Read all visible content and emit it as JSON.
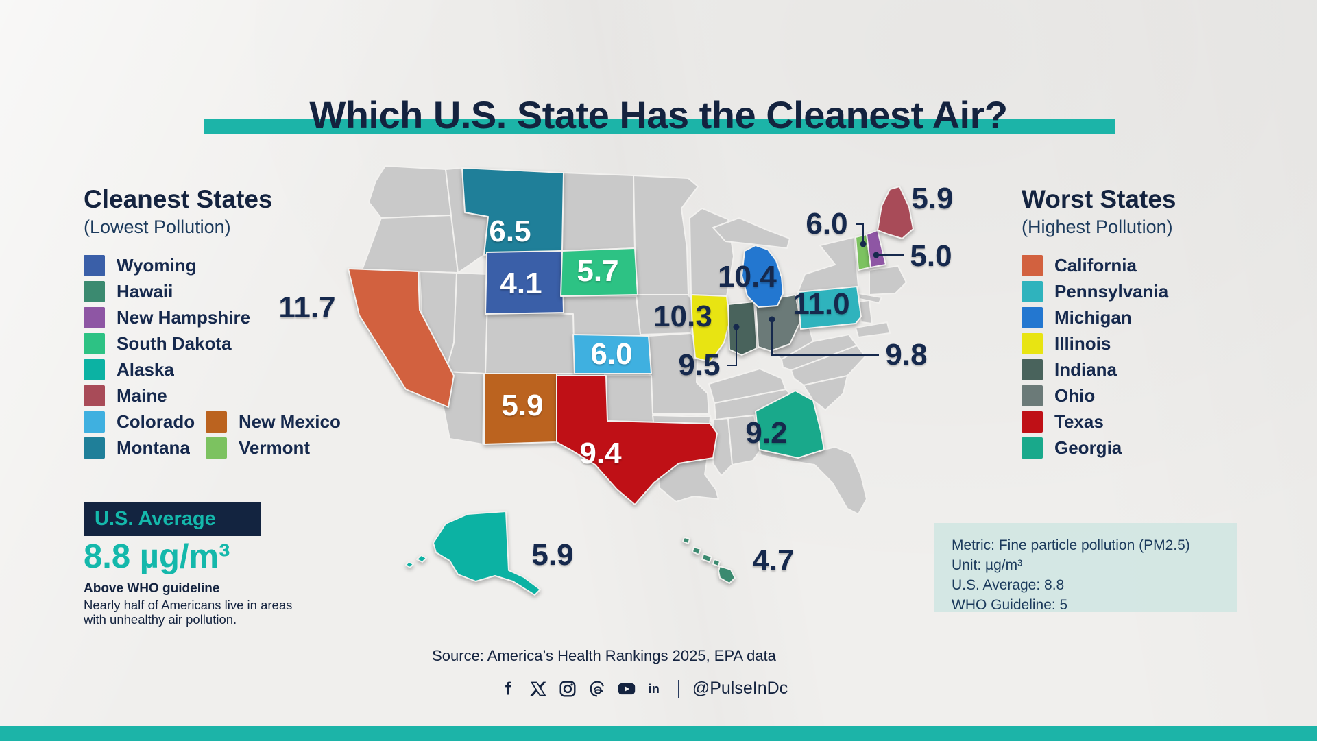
{
  "title": "Which U.S. State Has the Cleanest Air?",
  "colors": {
    "accent_teal": "#1cb4a8",
    "navy": "#14233f",
    "paper": "#f0efed",
    "gray_state": "#c9c9c9"
  },
  "cleanest": {
    "heading": "Cleanest States",
    "subheading": "(Lowest Pollution)",
    "items": [
      {
        "name": "Wyoming",
        "color": "#3a5fa8"
      },
      {
        "name": "Hawaii",
        "color": "#3b8a70"
      },
      {
        "name": "New Hampshire",
        "color": "#8e56a4"
      },
      {
        "name": "South Dakota",
        "color": "#2dc284"
      },
      {
        "name": "Alaska",
        "color": "#0cb2a3"
      },
      {
        "name": "Maine",
        "color": "#a84b58"
      },
      {
        "name": "Colorado",
        "color": "#3fb0e0"
      },
      {
        "name": "Montana",
        "color": "#1f7f99"
      }
    ],
    "items_col2": [
      {
        "name": "New Mexico",
        "color": "#bb631f"
      },
      {
        "name": "Vermont",
        "color": "#7cc260"
      }
    ]
  },
  "worst": {
    "heading": "Worst States",
    "subheading": "(Highest Pollution)",
    "items": [
      {
        "name": "California",
        "color": "#d2613f"
      },
      {
        "name": "Pennsylvania",
        "color": "#2fb3bd"
      },
      {
        "name": "Michigan",
        "color": "#2377d0"
      },
      {
        "name": "Illinois",
        "color": "#e8e412"
      },
      {
        "name": "Indiana",
        "color": "#49635c"
      },
      {
        "name": "Ohio",
        "color": "#6b7a78"
      },
      {
        "name": "Texas",
        "color": "#bf1016"
      },
      {
        "name": "Georgia",
        "color": "#19a98b"
      }
    ]
  },
  "us_average": {
    "label": "U.S. Average",
    "value": "8.8 µg/m³",
    "note_bold": "Above WHO guideline",
    "note": "Nearly half of Americans live in areas with unhealthy air pollution."
  },
  "metric_box": {
    "lines": [
      "Metric: Fine particle pollution (PM2.5)",
      "Unit: µg/m³",
      "U.S. Average: 8.8",
      "WHO Guideline: 5"
    ]
  },
  "source": "Source: America’s Health Rankings 2025, EPA data",
  "social": {
    "handle": "@PulseInDc",
    "icons": [
      "facebook",
      "x",
      "instagram",
      "threads",
      "youtube",
      "linkedin"
    ]
  },
  "map": {
    "states": [
      {
        "id": "MT",
        "name": "Montana",
        "value": "6.5",
        "fill": "#1f7f99",
        "label_color": "#ffffff"
      },
      {
        "id": "WY",
        "name": "Wyoming",
        "value": "4.1",
        "fill": "#3a5fa8",
        "label_color": "#ffffff"
      },
      {
        "id": "SD",
        "name": "South Dakota",
        "value": "5.7",
        "fill": "#2dc284",
        "label_color": "#ffffff"
      },
      {
        "id": "CA",
        "name": "California",
        "value": "11.7",
        "fill": "#d2613f",
        "label_color": "#16294d"
      },
      {
        "id": "KS",
        "name": "Colorado",
        "value": "6.0",
        "fill": "#3fb0e0",
        "label_color": "#ffffff"
      },
      {
        "id": "NM",
        "name": "New Mexico",
        "value": "5.9",
        "fill": "#bb631f",
        "label_color": "#ffffff"
      },
      {
        "id": "TX",
        "name": "Texas",
        "value": "9.4",
        "fill": "#bf1016",
        "label_color": "#ffffff"
      },
      {
        "id": "IL",
        "name": "Illinois",
        "value": "10.3",
        "fill": "#e8e412",
        "label_color": "#16294d"
      },
      {
        "id": "IN",
        "name": "Indiana",
        "value": "9.5",
        "fill": "#49635c",
        "label_color": "#16294d"
      },
      {
        "id": "OH",
        "name": "Ohio",
        "value": "9.8",
        "fill": "#6b7a78",
        "label_color": "#16294d"
      },
      {
        "id": "MI",
        "name": "Michigan",
        "value": "10.4",
        "fill": "#2377d0",
        "label_color": "#16294d"
      },
      {
        "id": "PA",
        "name": "Pennsylvania",
        "value": "11.0",
        "fill": "#2fb3bd",
        "label_color": "#16294d"
      },
      {
        "id": "GA",
        "name": "Georgia",
        "value": "9.2",
        "fill": "#19a98b",
        "label_color": "#16294d"
      },
      {
        "id": "VT",
        "name": "Vermont",
        "value": "6.0",
        "fill": "#7cc260",
        "label_color": "#16294d"
      },
      {
        "id": "NH",
        "name": "New Hampshire",
        "value": "5.0",
        "fill": "#8e56a4",
        "label_color": "#16294d"
      },
      {
        "id": "ME",
        "name": "Maine",
        "value": "5.9",
        "fill": "#a84b58",
        "label_color": "#16294d"
      },
      {
        "id": "AK",
        "name": "Alaska",
        "value": "5.9",
        "fill": "#0cb2a3",
        "label_color": "#16294d"
      },
      {
        "id": "HI",
        "name": "Hawaii",
        "value": "4.7",
        "fill": "#3b8a70",
        "label_color": "#16294d"
      }
    ]
  },
  "chart_data": {
    "type": "choropleth_map",
    "title": "Which U.S. State Has the Cleanest Air?",
    "metric": "Fine particle pollution (PM2.5)",
    "unit": "µg/m³",
    "us_average": 8.8,
    "who_guideline": 5,
    "series": [
      {
        "state": "Wyoming",
        "value": 4.1,
        "group": "cleanest"
      },
      {
        "state": "Hawaii",
        "value": 4.7,
        "group": "cleanest"
      },
      {
        "state": "New Hampshire",
        "value": 5.0,
        "group": "cleanest"
      },
      {
        "state": "South Dakota",
        "value": 5.7,
        "group": "cleanest"
      },
      {
        "state": "Alaska",
        "value": 5.9,
        "group": "cleanest"
      },
      {
        "state": "Maine",
        "value": 5.9,
        "group": "cleanest"
      },
      {
        "state": "New Mexico",
        "value": 5.9,
        "group": "cleanest"
      },
      {
        "state": "Colorado",
        "value": 6.0,
        "group": "cleanest"
      },
      {
        "state": "Vermont",
        "value": 6.0,
        "group": "cleanest"
      },
      {
        "state": "Montana",
        "value": 6.5,
        "group": "cleanest"
      },
      {
        "state": "Georgia",
        "value": 9.2,
        "group": "worst"
      },
      {
        "state": "Texas",
        "value": 9.4,
        "group": "worst"
      },
      {
        "state": "Indiana",
        "value": 9.5,
        "group": "worst"
      },
      {
        "state": "Ohio",
        "value": 9.8,
        "group": "worst"
      },
      {
        "state": "Illinois",
        "value": 10.3,
        "group": "worst"
      },
      {
        "state": "Michigan",
        "value": 10.4,
        "group": "worst"
      },
      {
        "state": "Pennsylvania",
        "value": 11.0,
        "group": "worst"
      },
      {
        "state": "California",
        "value": 11.7,
        "group": "worst"
      }
    ],
    "source": "America’s Health Rankings 2025, EPA data"
  }
}
